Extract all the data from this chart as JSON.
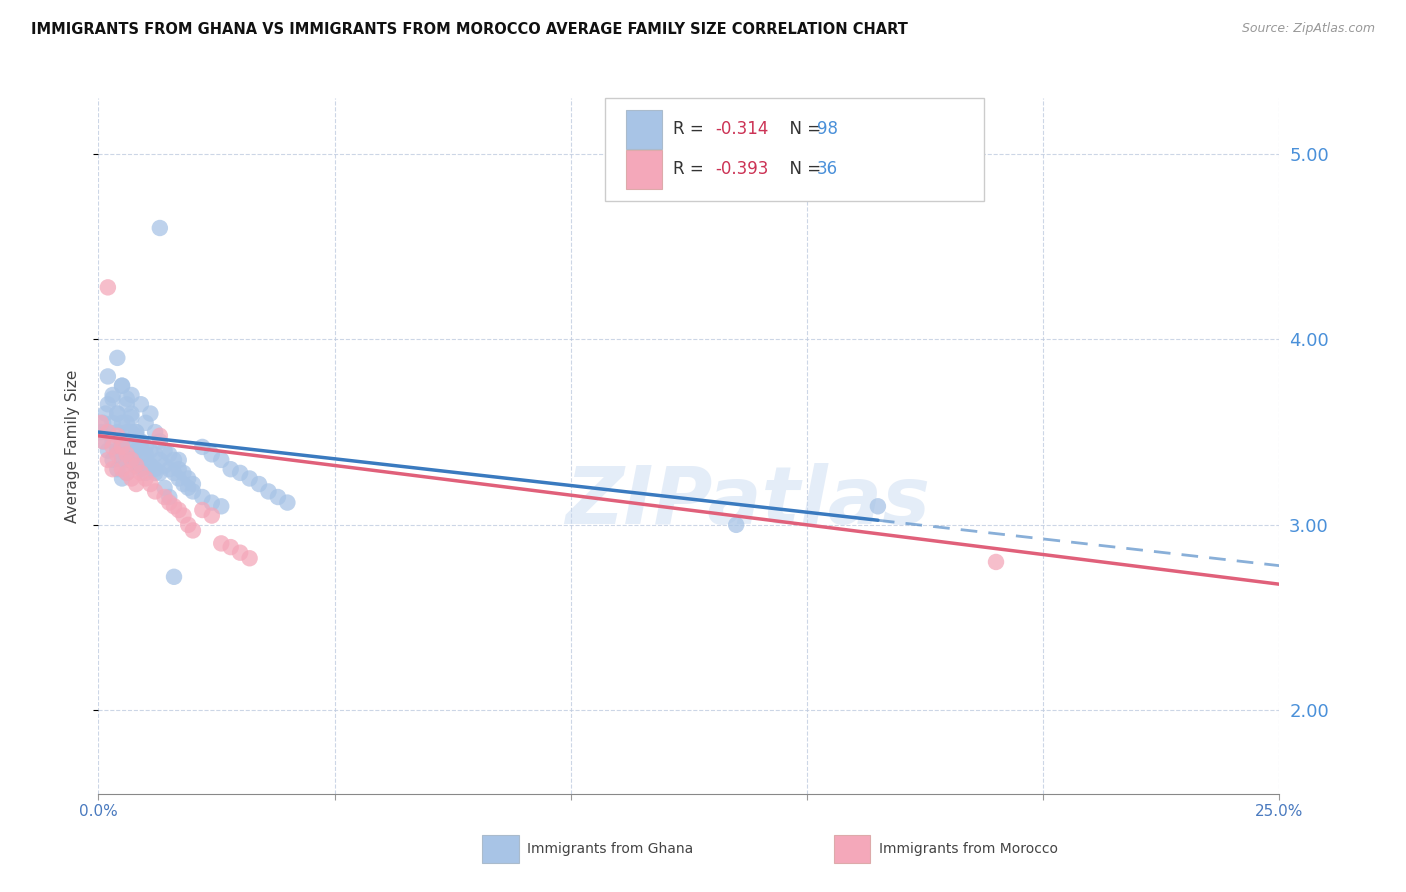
{
  "title": "IMMIGRANTS FROM GHANA VS IMMIGRANTS FROM MOROCCO AVERAGE FAMILY SIZE CORRELATION CHART",
  "source": "Source: ZipAtlas.com",
  "ylabel": "Average Family Size",
  "yticks_right": [
    2.0,
    3.0,
    4.0,
    5.0
  ],
  "ghana_color": "#a8c4e6",
  "morocco_color": "#f4a8ba",
  "ghana_line_color": "#3a7abf",
  "morocco_line_color": "#e0607a",
  "ghana_R": -0.314,
  "ghana_N": 98,
  "morocco_R": -0.393,
  "morocco_N": 36,
  "watermark": "ZIPatlas",
  "legend_ghana": "Immigrants from Ghana",
  "legend_morocco": "Immigrants from Morocco",
  "ghana_scatter_x": [
    0.0005,
    0.001,
    0.001,
    0.0015,
    0.002,
    0.002,
    0.002,
    0.003,
    0.003,
    0.003,
    0.004,
    0.004,
    0.004,
    0.004,
    0.005,
    0.005,
    0.005,
    0.005,
    0.006,
    0.006,
    0.006,
    0.006,
    0.007,
    0.007,
    0.007,
    0.008,
    0.008,
    0.008,
    0.009,
    0.009,
    0.009,
    0.01,
    0.01,
    0.01,
    0.011,
    0.011,
    0.012,
    0.012,
    0.013,
    0.013,
    0.014,
    0.015,
    0.016,
    0.017,
    0.018,
    0.019,
    0.02,
    0.022,
    0.024,
    0.026,
    0.003,
    0.004,
    0.005,
    0.006,
    0.006,
    0.007,
    0.007,
    0.008,
    0.009,
    0.01,
    0.011,
    0.012,
    0.013,
    0.014,
    0.015,
    0.016,
    0.017,
    0.018,
    0.019,
    0.02,
    0.022,
    0.024,
    0.026,
    0.028,
    0.03,
    0.032,
    0.034,
    0.036,
    0.038,
    0.04,
    0.002,
    0.003,
    0.004,
    0.005,
    0.006,
    0.007,
    0.008,
    0.009,
    0.01,
    0.011,
    0.012,
    0.013,
    0.014,
    0.015,
    0.016,
    0.017,
    0.135,
    0.165
  ],
  "ghana_scatter_y": [
    3.5,
    3.55,
    3.45,
    3.6,
    3.5,
    3.4,
    3.65,
    3.55,
    3.45,
    3.35,
    3.6,
    3.5,
    3.4,
    3.3,
    3.55,
    3.45,
    3.35,
    3.25,
    3.5,
    3.42,
    3.35,
    3.28,
    3.5,
    3.42,
    3.35,
    3.48,
    3.4,
    3.32,
    3.45,
    3.38,
    3.3,
    3.42,
    3.35,
    3.28,
    3.4,
    3.32,
    3.38,
    3.3,
    3.35,
    3.28,
    3.32,
    3.3,
    3.28,
    3.25,
    3.22,
    3.2,
    3.18,
    3.15,
    3.12,
    3.1,
    3.7,
    3.6,
    3.75,
    3.65,
    3.55,
    3.7,
    3.6,
    3.5,
    3.65,
    3.55,
    3.6,
    3.5,
    3.45,
    3.4,
    3.38,
    3.35,
    3.3,
    3.28,
    3.25,
    3.22,
    3.42,
    3.38,
    3.35,
    3.3,
    3.28,
    3.25,
    3.22,
    3.18,
    3.15,
    3.12,
    3.8,
    3.68,
    3.9,
    3.75,
    3.68,
    3.58,
    3.5,
    3.42,
    3.38,
    3.32,
    3.28,
    4.6,
    3.2,
    3.15,
    2.72,
    3.35,
    3.0,
    3.1
  ],
  "morocco_scatter_x": [
    0.0005,
    0.001,
    0.002,
    0.002,
    0.003,
    0.003,
    0.004,
    0.004,
    0.005,
    0.005,
    0.006,
    0.006,
    0.007,
    0.007,
    0.008,
    0.008,
    0.009,
    0.01,
    0.011,
    0.012,
    0.013,
    0.014,
    0.015,
    0.016,
    0.017,
    0.018,
    0.019,
    0.02,
    0.022,
    0.024,
    0.026,
    0.028,
    0.03,
    0.032,
    0.19,
    0.002
  ],
  "morocco_scatter_y": [
    3.55,
    3.45,
    3.5,
    3.35,
    3.42,
    3.3,
    3.48,
    3.38,
    3.42,
    3.3,
    3.38,
    3.28,
    3.35,
    3.25,
    3.32,
    3.22,
    3.28,
    3.25,
    3.22,
    3.18,
    3.48,
    3.15,
    3.12,
    3.1,
    3.08,
    3.05,
    3.0,
    2.97,
    3.08,
    3.05,
    2.9,
    2.88,
    2.85,
    2.82,
    2.8,
    4.28
  ],
  "ghana_line_x_start": 0.0,
  "ghana_line_x_data_end": 0.165,
  "ghana_line_x_end": 0.25,
  "morocco_line_x_start": 0.0,
  "morocco_line_x_end": 0.25,
  "xlim": [
    0.0,
    0.25
  ],
  "ylim": [
    1.55,
    5.3
  ]
}
